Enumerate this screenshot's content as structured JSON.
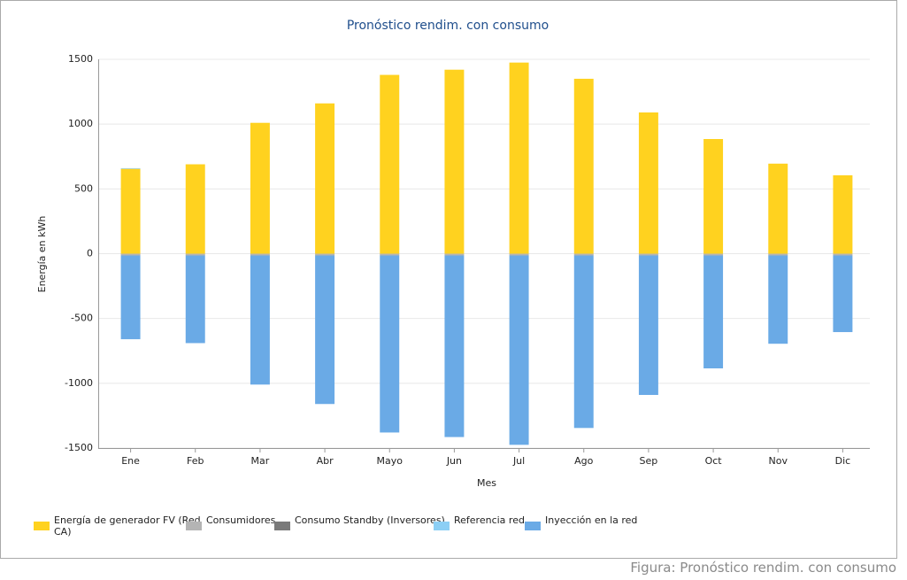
{
  "chart_data": {
    "type": "stacked_bar",
    "title": "Pronóstico rendim. con consumo",
    "x_label": "Mes",
    "y_label": "Energía en kWh",
    "categories": [
      "Ene",
      "Feb",
      "Mar",
      "Abr",
      "Mayo",
      "Jun",
      "Jul",
      "Ago",
      "Sep",
      "Oct",
      "Nov",
      "Dic"
    ],
    "series": [
      {
        "name": "Energía de generador FV (Red CA)",
        "color": "#ffd21f",
        "values": [
          655,
          690,
          1010,
          1160,
          1380,
          1420,
          1475,
          1350,
          1090,
          885,
          695,
          605
        ]
      },
      {
        "name": "Consumidores",
        "color": "#b4b4b4",
        "values": [
          -12,
          -12,
          -12,
          -12,
          -12,
          -12,
          -12,
          -12,
          -12,
          -12,
          -12,
          -12
        ]
      },
      {
        "name": "Consumo Standby (Inversores)",
        "color": "#7a7a7a",
        "values": [
          -2,
          -2,
          -2,
          -2,
          -2,
          -2,
          -2,
          -2,
          -2,
          -2,
          -2,
          -2
        ]
      },
      {
        "name": "Referencia red",
        "color": "#8ccff5",
        "values": [
          5,
          0,
          0,
          0,
          0,
          0,
          0,
          0,
          0,
          0,
          0,
          0
        ]
      },
      {
        "name": "Inyección en la red",
        "color": "#6aaae6",
        "values": [
          -646,
          -676,
          -996,
          -1146,
          -1366,
          -1401,
          -1461,
          -1331,
          -1076,
          -871,
          -681,
          -591
        ]
      }
    ],
    "ylim": [
      -1500,
      1500
    ],
    "yticks": [
      -1500,
      -1000,
      -500,
      0,
      500,
      1000,
      1500
    ],
    "grid": true
  },
  "caption": "Figura: Pronóstico rendim. con consumo"
}
